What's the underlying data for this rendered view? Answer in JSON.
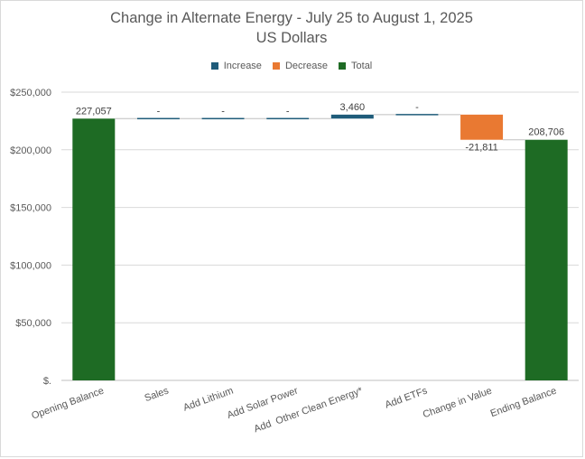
{
  "chart_data": {
    "type": "waterfall",
    "title": "Change in Alternate Energy - July 25 to August 1, 2025",
    "subtitle": "US Dollars",
    "legend": [
      {
        "name": "Increase",
        "color": "#1f5c7a"
      },
      {
        "name": "Decrease",
        "color": "#e97932"
      },
      {
        "name": "Total",
        "color": "#1e6b24"
      }
    ],
    "legend_position": "top",
    "categories": [
      "Opening Balance",
      "Sales",
      "Add Lithium",
      "Add Solar Power",
      "Add  Other Clean Energy*",
      "Add ETFs",
      "Change in Value",
      "Ending Balance"
    ],
    "values": [
      227057,
      0,
      0,
      0,
      3460,
      0,
      -21811,
      208706
    ],
    "kinds": [
      "total",
      "increase",
      "increase",
      "increase",
      "increase",
      "increase",
      "decrease",
      "total"
    ],
    "data_labels": [
      "227,057",
      "-",
      "-",
      "-",
      "3,460",
      "-",
      "-21,811",
      "208,706"
    ],
    "ylim": [
      0,
      250000
    ],
    "yticks": [
      0,
      50000,
      100000,
      150000,
      200000,
      250000
    ],
    "ytick_labels": [
      "$.",
      "$50,000",
      "$100,000",
      "$150,000",
      "$200,000",
      "$250,000"
    ],
    "grid": true
  }
}
